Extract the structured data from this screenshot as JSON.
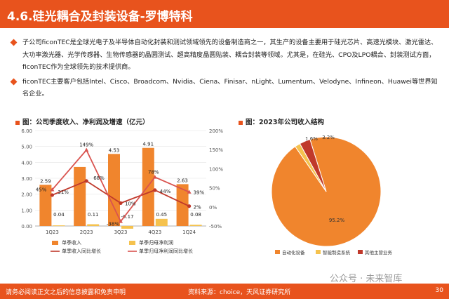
{
  "title": "4.6.硅光耦合及封装设备-罗博特科",
  "bullets": [
    "子公司ficonTEC是全球光电子及半导体自动化封装和测试领域领先的设备制造商之一，其生产的设备主要用于硅光芯片、高速光模块、激光雷达、大功率激光器、光学传感器、生物传感器的晶圆测试、超高精度晶圆贴装、耦合封装等领域。尤其是，在硅光、CPO及LPO耦合、封装测试方面，ficonTEC作为全球领先的技术提供商。",
    "ficonTEC主要客户包括Intel、Cisco、Broadcom、Nvidia、Ciena、Finisar、nLight、Lumentum、Velodyne、Infineon、Huawei等世界知名企业。"
  ],
  "chart1_title": "图：公司季度收入、净利润及增速（亿元）",
  "chart2_title": "图：2023年公司收入结构",
  "colors": {
    "accent": "#e8531d",
    "revenue_bar": "#f0852d",
    "profit_bar": "#f5c24e",
    "revenue_yoy_line": "#c0392b",
    "profit_yoy_line": "#d9534f",
    "pie_main": "#f0852d",
    "pie_second": "#f5c24e",
    "pie_third": "#c0392b"
  },
  "chart_data": [
    {
      "type": "bar",
      "categories": [
        "1Q23",
        "2Q23",
        "3Q23",
        "4Q23",
        "1Q24"
      ],
      "series": [
        {
          "name": "单季收入",
          "type": "bar",
          "values": [
            2.59,
            3.71,
            4.53,
            4.91,
            2.63
          ],
          "labels": [
            "2.59",
            "",
            "4.53",
            "4.91",
            "2.63"
          ]
        },
        {
          "name": "单季归母净利润",
          "type": "bar",
          "values": [
            0.04,
            0.11,
            -0.17,
            0.45,
            0.08
          ],
          "labels": [
            "0.04",
            "0.11",
            "-0.17",
            "0.45",
            "0.08"
          ]
        },
        {
          "name": "单季收入同比增长",
          "type": "line",
          "axis": "right",
          "values": [
            31,
            68,
            10,
            44,
            2
          ],
          "labels": [
            "31%",
            "68%",
            "10%",
            "44%",
            "2%"
          ]
        },
        {
          "name": "单季归母净利润同比增长",
          "type": "line",
          "axis": "right",
          "values": [
            45,
            149,
            -38,
            78,
            39
          ],
          "labels": [
            "45%",
            "149%",
            "-38%",
            "78%",
            "39%"
          ]
        }
      ],
      "y_left": {
        "min": 0,
        "max": 6,
        "ticks": [
          "0.00",
          "1.00",
          "2.00",
          "3.00",
          "4.00",
          "5.00",
          "6.00"
        ]
      },
      "y_right": {
        "min": -50,
        "max": 200,
        "ticks": [
          "-50%",
          "0%",
          "50%",
          "100%",
          "150%",
          "200%"
        ]
      },
      "legend_position": "bottom"
    },
    {
      "type": "pie",
      "slices": [
        {
          "name": "自动化设备",
          "value": 95.2,
          "label": "95.2%"
        },
        {
          "name": "智能制造系统",
          "value": 1.6,
          "label": "1.6%"
        },
        {
          "name": "其他主营业务",
          "value": 3.2,
          "label": "3.2%"
        }
      ],
      "legend_position": "bottom"
    }
  ],
  "footer": {
    "disclaimer": "请务必阅读正文之后的信息披露和免责申明",
    "source": "资料来源：choice，天风证券研究所",
    "page": "30"
  },
  "watermark": "公众号 · 未来智库"
}
